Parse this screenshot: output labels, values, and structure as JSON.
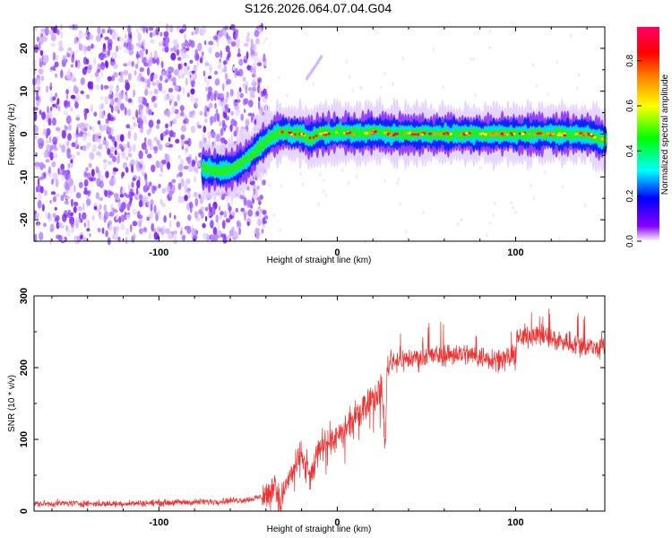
{
  "figure_title": "S126.2026.064.07.04.G04",
  "chart_data": [
    {
      "type": "heatmap",
      "title": "S126.2026.064.07.04.G04",
      "xlabel": "Height of straight line (km)",
      "ylabel": "Frequency (Hz)",
      "xlim": [
        -170,
        150
      ],
      "ylim": [
        -25,
        25
      ],
      "xticks": [
        -100,
        0,
        100
      ],
      "yticks": [
        -20,
        -10,
        0,
        10,
        20
      ],
      "xtick_labels": [
        "-100",
        "0",
        "100"
      ],
      "ytick_labels": [
        "-20",
        "-10",
        "0",
        "10",
        "20"
      ],
      "colorbar": {
        "label": "Normalized spectral amplitude",
        "range": [
          0.0,
          0.95
        ],
        "ticks": [
          0.0,
          0.2,
          0.4,
          0.6,
          0.8
        ],
        "tick_labels": [
          "0.0",
          "0.2",
          "0.4",
          "0.6",
          "0.8"
        ],
        "colormap": [
          "#ffffff",
          "#8800ff",
          "#0000ff",
          "#00ffff",
          "#00ff00",
          "#ffff00",
          "#ff8800",
          "#ff0000",
          "#ff0066"
        ]
      },
      "noise_region_x": [
        -170,
        -43
      ],
      "signal_track": {
        "x": [
          -75,
          -65,
          -58,
          -52,
          -47,
          -42,
          -38,
          -34,
          -30,
          -25,
          -20,
          -15,
          -10,
          -5,
          0,
          10,
          20,
          30,
          40,
          50,
          60,
          70,
          80,
          90,
          100,
          110,
          120,
          130,
          140,
          150
        ],
        "freq": [
          -8,
          -8.5,
          -8,
          -6.5,
          -4.5,
          -2.5,
          -1,
          0,
          0.5,
          0,
          0,
          -1,
          0,
          0,
          0.5,
          0,
          0.5,
          0,
          0,
          0,
          0,
          0,
          0,
          0,
          0,
          0,
          0,
          0,
          0,
          -1.5
        ]
      },
      "ghost_track": {
        "x": [
          -17,
          -12,
          -9
        ],
        "freq": [
          13,
          16,
          18
        ]
      }
    },
    {
      "type": "line",
      "xlabel": "Height of straight line (km)",
      "ylabel": "SNR (10 * v/v)",
      "xlim": [
        -170,
        150
      ],
      "ylim": [
        0,
        300
      ],
      "xticks": [
        -100,
        0,
        100
      ],
      "yticks": [
        0,
        100,
        200,
        300
      ],
      "xtick_labels": [
        "-100",
        "0",
        "100"
      ],
      "ytick_labels": [
        "0",
        "100",
        "200",
        "300"
      ],
      "color": "#ee3333",
      "series": [
        {
          "name": "SNR",
          "x": [
            -170,
            -150,
            -130,
            -110,
            -90,
            -70,
            -50,
            -42,
            -37,
            -35,
            -32,
            -29,
            -25,
            -20,
            -15,
            -10,
            -5,
            0,
            5,
            10,
            15,
            20,
            25,
            27,
            28,
            30,
            40,
            50,
            60,
            70,
            80,
            90,
            100,
            101,
            102,
            110,
            120,
            130,
            140,
            150
          ],
          "y": [
            10,
            11,
            10,
            11,
            12,
            13,
            16,
            20,
            25,
            45,
            10,
            35,
            55,
            80,
            45,
            90,
            100,
            100,
            115,
            130,
            150,
            160,
            170,
            90,
            200,
            210,
            212,
            215,
            218,
            220,
            215,
            212,
            215,
            245,
            240,
            248,
            240,
            235,
            230,
            225
          ]
        }
      ]
    }
  ]
}
